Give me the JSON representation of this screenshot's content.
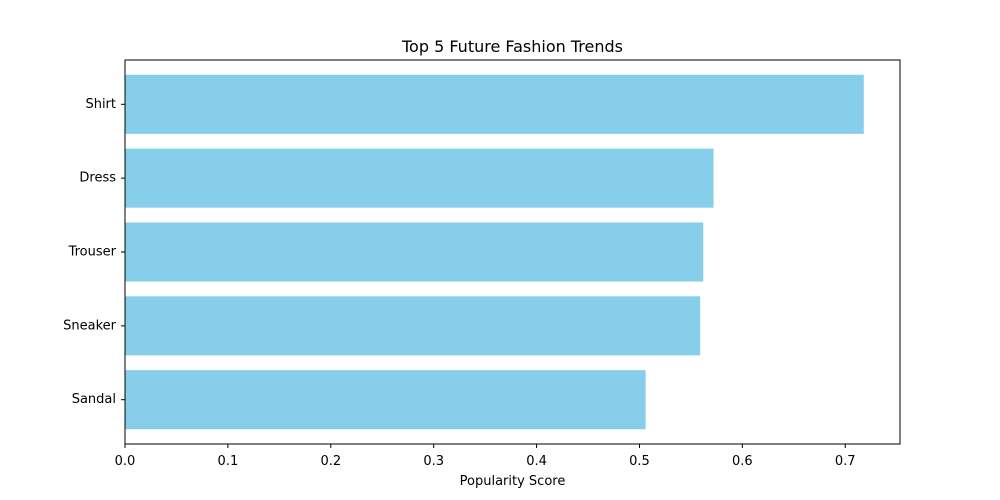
{
  "chart_data": {
    "type": "bar",
    "orientation": "horizontal",
    "title": "Top 5 Future Fashion Trends",
    "xlabel": "Popularity Score",
    "ylabel": "",
    "categories": [
      "Shirt",
      "Dress",
      "Trouser",
      "Sneaker",
      "Sandal"
    ],
    "values": [
      0.718,
      0.572,
      0.562,
      0.559,
      0.506
    ],
    "xlim": [
      0.0,
      0.7532
    ],
    "xticks": [
      "0.0",
      "0.1",
      "0.2",
      "0.3",
      "0.4",
      "0.5",
      "0.6",
      "0.7"
    ],
    "grid": false,
    "bar_color": "#87ceeb"
  }
}
